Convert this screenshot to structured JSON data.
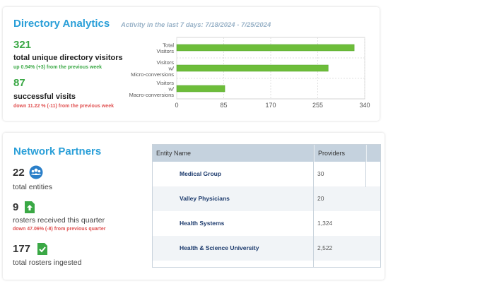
{
  "analytics": {
    "title": "Directory Analytics",
    "subtitle": "Activity in the last 7 days: 7/18/2024 - 7/25/2024",
    "stats": [
      {
        "value": "321",
        "label": "total unique directory visitors",
        "change": "up 0.94% (+3) from the previous week",
        "direction": "up"
      },
      {
        "value": "87",
        "label": "successful visits",
        "change": "down 11.22 % (-11) from the previous week",
        "direction": "down"
      }
    ]
  },
  "chart_data": {
    "type": "bar",
    "orientation": "horizontal",
    "categories": [
      "Total Visitors",
      "Visitors w/ Micro-conversions",
      "Visitors w/ Macro-conversions"
    ],
    "category_lines": [
      [
        "Total",
        "Visitors"
      ],
      [
        "Visitors",
        "w/",
        "Micro-conversions"
      ],
      [
        "Visitors",
        "w/",
        "Macro-conversions"
      ]
    ],
    "values": [
      321,
      274,
      87
    ],
    "ticks": [
      "0",
      "85",
      "170",
      "255",
      "340"
    ],
    "xlim": [
      0,
      340
    ],
    "colors": {
      "bar": "#6dbd3a",
      "bar_dark": "#52a32a"
    },
    "grid": true
  },
  "partners": {
    "title": "Network Partners",
    "stats": [
      {
        "value": "22",
        "label": "total entities",
        "icon": "people-icon"
      },
      {
        "value": "9",
        "label": "rosters received this quarter",
        "change": "down 47.06% (-8) from previous quarter",
        "icon": "upload-file-icon"
      },
      {
        "value": "177",
        "label": "total rosters ingested",
        "icon": "file-check-icon"
      }
    ],
    "table": {
      "headers": [
        "Entity Name",
        "Providers"
      ],
      "rows": [
        {
          "name": "Medical Group",
          "providers": "30"
        },
        {
          "name": "Valley Physicians",
          "providers": "20"
        },
        {
          "name": "Health Systems",
          "providers": "1,324"
        },
        {
          "name": "Health & Science University",
          "providers": "2,522"
        }
      ]
    }
  },
  "colors": {
    "accent": "#2a9fd8",
    "up": "#3aa845",
    "down": "#e05050"
  }
}
